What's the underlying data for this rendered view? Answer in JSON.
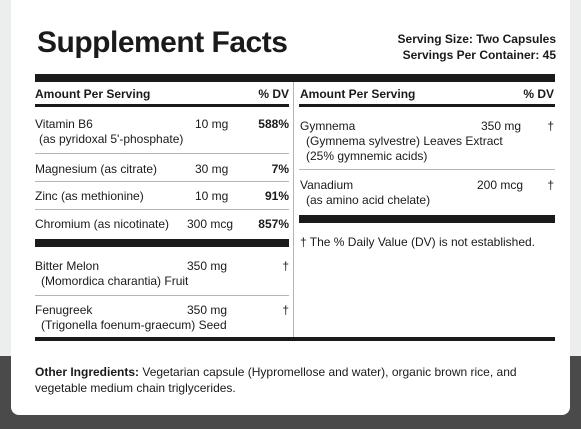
{
  "title": "Supplement Facts",
  "serving_size": "Serving Size: Two Capsules",
  "servings_per_container": "Servings Per Container: 45",
  "left_header": {
    "label": "Amount Per Serving",
    "dv": "% DV"
  },
  "right_header": {
    "label": "Amount Per Serving",
    "dv": "% DV"
  },
  "left_rows": [
    {
      "name": "Vitamin B6",
      "sub": "(as pyridoxal 5'-phosphate)",
      "amount": "10 mg",
      "dv": "588%"
    },
    {
      "name": "Magnesium (as citrate)",
      "amount": "30 mg",
      "dv": "7%"
    },
    {
      "name": "Zinc (as methionine)",
      "amount": "10 mg",
      "dv": "91%"
    },
    {
      "name": "Chromium (as nicotinate)",
      "amount": "300 mcg",
      "dv": "857%"
    }
  ],
  "left_rows_2": [
    {
      "name": "Bitter Melon",
      "sub": "(Momordica charantia) Fruit",
      "amount": "350 mg",
      "dv": "†"
    },
    {
      "name": "Fenugreek",
      "sub": "(Trigonella foenum-graecum) Seed",
      "amount": "350 mg",
      "dv": "†"
    }
  ],
  "right_rows": [
    {
      "name": "Gymnema",
      "sub1": "(Gymnema sylvestre) Leaves Extract",
      "sub2": "(25% gymnemic acids)",
      "amount": "350 mg",
      "dv": "†"
    },
    {
      "name": "Vanadium",
      "sub1": "(as amino acid chelate)",
      "amount": "200 mcg",
      "dv": "†"
    }
  ],
  "footnote": "† The % Daily Value (DV) is not established.",
  "other_ingredients": {
    "label": "Other Ingredients:",
    "text": " Vegetarian capsule (Hypromellose and water), organic brown rice, and vegetable medium chain triglycerides."
  }
}
